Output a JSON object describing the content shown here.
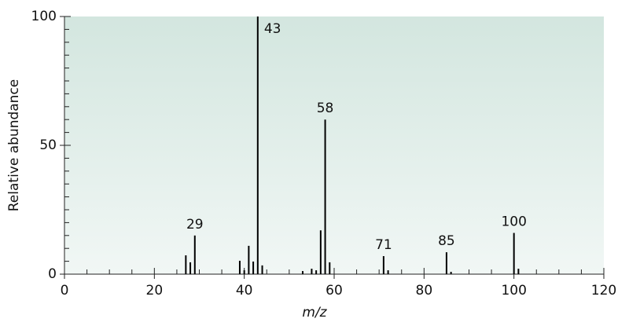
{
  "chart_data": {
    "type": "stem",
    "xlabel": "m/z",
    "ylabel": "Relative abundance",
    "x": [
      27,
      28,
      29,
      39,
      40,
      41,
      42,
      43,
      44,
      53,
      55,
      56,
      57,
      58,
      59,
      71,
      72,
      85,
      86,
      100,
      101
    ],
    "values": [
      7.3,
      4.6,
      15,
      5.2,
      1.5,
      11,
      4.9,
      100,
      3.4,
      1.2,
      2.1,
      1.5,
      17,
      60,
      4.6,
      7,
      1.5,
      8.5,
      0.9,
      16,
      2.1
    ],
    "show_label": [
      false,
      false,
      true,
      false,
      false,
      false,
      false,
      true,
      false,
      false,
      false,
      false,
      false,
      true,
      false,
      true,
      false,
      true,
      false,
      true,
      false
    ],
    "color": "#000000",
    "xlim": [
      0,
      120
    ],
    "xticks": [
      0,
      20,
      40,
      60,
      80,
      100,
      120
    ],
    "xticks_minor": [
      5,
      10,
      15,
      25,
      30,
      35,
      45,
      50,
      55,
      65,
      70,
      75,
      85,
      90,
      95,
      105,
      110,
      115
    ],
    "ylim": [
      0,
      100
    ],
    "yticks": [
      0,
      50,
      100
    ],
    "yticks_minor": [
      5,
      10,
      15,
      20,
      25,
      30,
      35,
      40,
      45,
      55,
      60,
      65,
      70,
      75,
      80,
      85,
      90,
      95
    ]
  }
}
